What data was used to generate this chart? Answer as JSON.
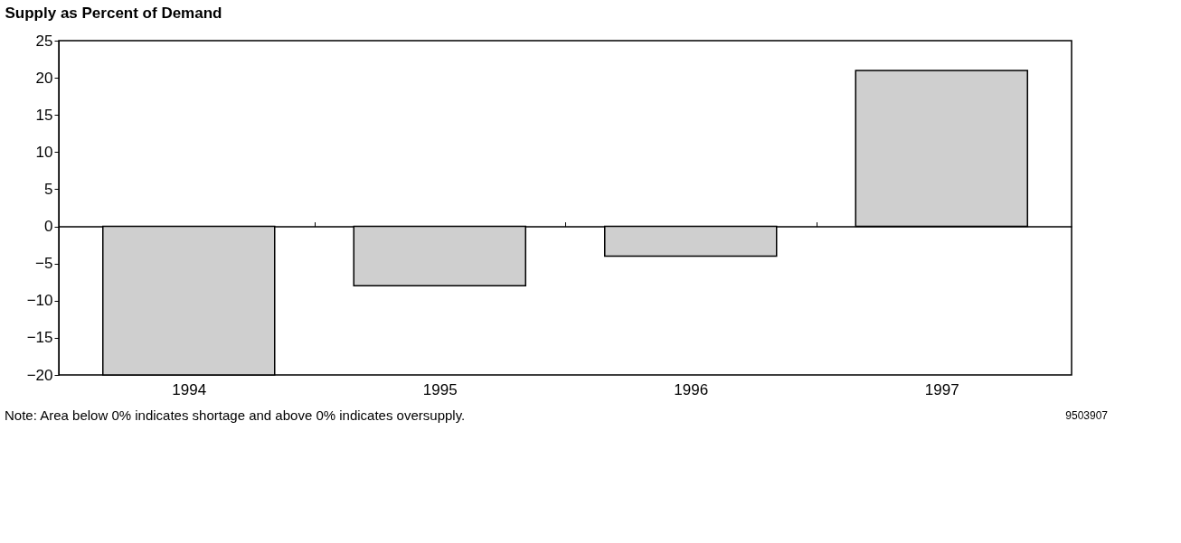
{
  "chart_data": {
    "type": "bar",
    "ylabel": "Supply as Percent of Demand",
    "categories": [
      "1994",
      "1995",
      "1996",
      "1997"
    ],
    "values": [
      -20,
      -8,
      -4,
      21
    ],
    "color": "#cfcfcf",
    "ylim": [
      -20,
      25
    ],
    "yticks": [
      -20,
      -15,
      -10,
      -5,
      0,
      5,
      10,
      15,
      20,
      25
    ],
    "annotations": [
      "Note: Area below 0% indicates shortage and above 0% indicates oversupply.",
      "9503907"
    ]
  }
}
